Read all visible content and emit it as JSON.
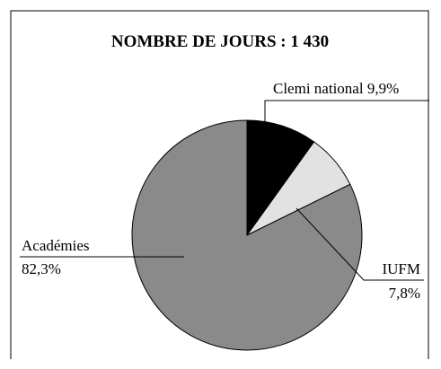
{
  "chart_data": {
    "type": "pie",
    "title": "NOMBRE DE JOURS : 1 430",
    "categories": [
      "Clemi national",
      "IUFM",
      "Académies"
    ],
    "values": [
      9.9,
      7.8,
      82.3
    ],
    "value_labels": [
      "9,9%",
      "7,8%",
      "82,3%"
    ],
    "colors": [
      "#000000",
      "#e2e2e2",
      "#8a8a8a"
    ]
  }
}
